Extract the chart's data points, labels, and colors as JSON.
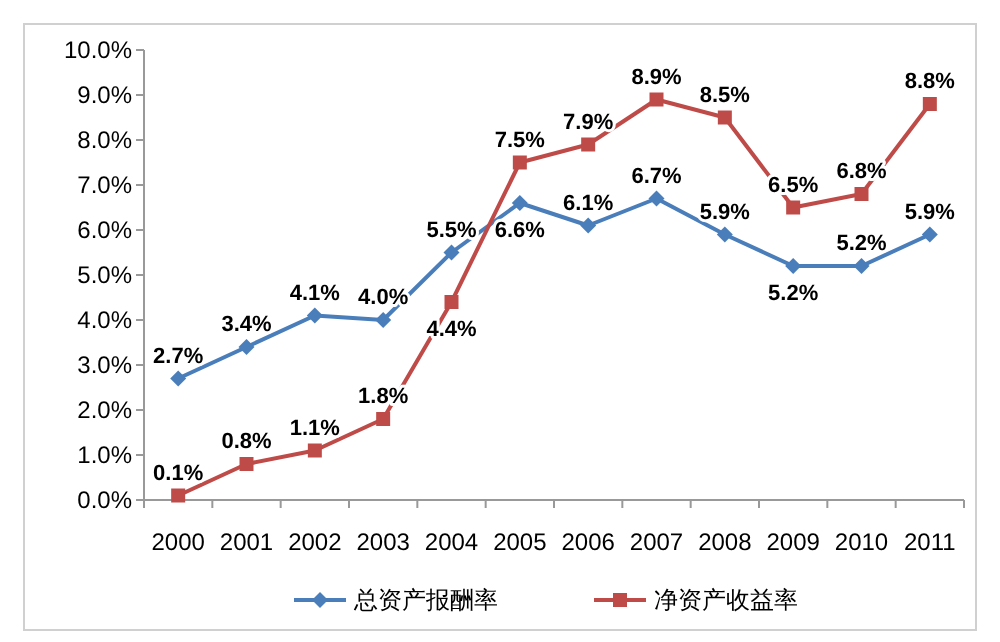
{
  "chart_data": {
    "type": "line",
    "categories": [
      "2000",
      "2001",
      "2002",
      "2003",
      "2004",
      "2005",
      "2006",
      "2007",
      "2008",
      "2009",
      "2010",
      "2011"
    ],
    "series": [
      {
        "name": "总资产报酬率",
        "color": "#4a7ebb",
        "marker": "diamond",
        "values": [
          2.7,
          3.4,
          4.1,
          4.0,
          5.5,
          6.6,
          6.1,
          6.7,
          5.9,
          5.2,
          5.2,
          5.9
        ],
        "value_labels": [
          "2.7%",
          "3.4%",
          "4.1%",
          "4.0%",
          "5.5%",
          "6.6%",
          "6.1%",
          "6.7%",
          "5.9%",
          "5.2%",
          "5.2%",
          "5.9%"
        ]
      },
      {
        "name": "净资产收益率",
        "color": "#be4b48",
        "marker": "square",
        "values": [
          0.1,
          0.8,
          1.1,
          1.8,
          4.4,
          7.5,
          7.9,
          8.9,
          8.5,
          6.5,
          6.8,
          8.8
        ],
        "value_labels": [
          "0.1%",
          "0.8%",
          "1.1%",
          "1.8%",
          "4.4%",
          "7.5%",
          "7.9%",
          "8.9%",
          "8.5%",
          "6.5%",
          "6.8%",
          "8.8%"
        ]
      }
    ],
    "ylim": [
      0,
      10
    ],
    "yticks": [
      {
        "value": 0,
        "label": "0.0%"
      },
      {
        "value": 1,
        "label": "1.0%"
      },
      {
        "value": 2,
        "label": "2.0%"
      },
      {
        "value": 3,
        "label": "3.0%"
      },
      {
        "value": 4,
        "label": "4.0%"
      },
      {
        "value": 5,
        "label": "5.0%"
      },
      {
        "value": 6,
        "label": "6.0%"
      },
      {
        "value": 7,
        "label": "7.0%"
      },
      {
        "value": 8,
        "label": "8.0%"
      },
      {
        "value": 9,
        "label": "9.0%"
      },
      {
        "value": 10,
        "label": "10.0%"
      }
    ],
    "legend": "bottom"
  }
}
